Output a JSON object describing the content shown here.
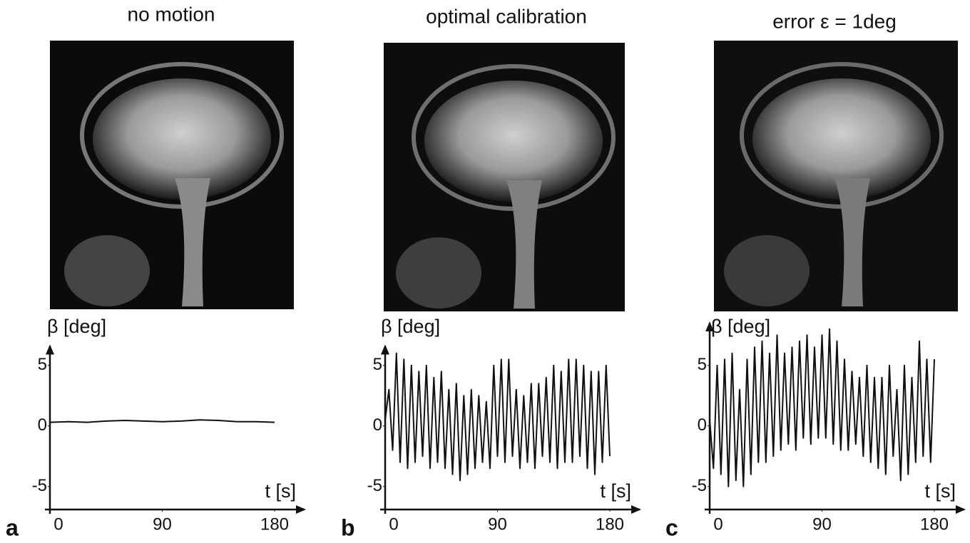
{
  "chart_data": [
    {
      "type": "line",
      "title": "no motion",
      "panel_label": "a",
      "xlabel": "t [s]",
      "ylabel": "β [deg]",
      "x": [
        0,
        15,
        30,
        45,
        60,
        75,
        90,
        105,
        120,
        135,
        150,
        165,
        180
      ],
      "series": [
        {
          "color": "#111111",
          "values": [
            0.3,
            0.35,
            0.3,
            0.4,
            0.45,
            0.4,
            0.35,
            0.4,
            0.5,
            0.45,
            0.35,
            0.35,
            0.3
          ]
        }
      ],
      "xlim": [
        -4,
        204
      ],
      "ylim": [
        -6.9,
        6.6
      ],
      "xticks": [
        0,
        90,
        180
      ],
      "yticks": [
        -5,
        0,
        5
      ]
    },
    {
      "type": "line",
      "title": "optimal calibration",
      "panel_label": "b",
      "xlabel": "t [s]",
      "ylabel": "β [deg]",
      "x": [
        0,
        3,
        6,
        9,
        12,
        15,
        18,
        21,
        24,
        27,
        30,
        33,
        36,
        39,
        42,
        45,
        48,
        51,
        54,
        57,
        60,
        63,
        66,
        69,
        72,
        75,
        78,
        81,
        84,
        87,
        90,
        93,
        96,
        99,
        102,
        105,
        108,
        111,
        114,
        117,
        120,
        123,
        126,
        129,
        132,
        135,
        138,
        141,
        144,
        147,
        150,
        153,
        156,
        159,
        162,
        165,
        168,
        171,
        174,
        177,
        180
      ],
      "series": [
        {
          "color": "#111111",
          "values": [
            0.5,
            3,
            -2,
            6,
            -3,
            5.5,
            -3.5,
            5,
            -3,
            4.5,
            -2.5,
            5,
            -3.5,
            4,
            -3,
            4.5,
            -3.5,
            3,
            -4,
            3.5,
            -4.5,
            2.5,
            -4,
            3,
            -3.5,
            2.5,
            -3,
            2,
            -3.5,
            5,
            -2.5,
            5.5,
            -3,
            5.5,
            -2.5,
            3,
            -3.5,
            2.5,
            -3,
            3.5,
            -3.5,
            3.5,
            -2.5,
            4,
            -3,
            5,
            -3.5,
            4.5,
            -3,
            5.5,
            -3,
            5.5,
            -2.5,
            5,
            -3.5,
            4.5,
            -4,
            4.5,
            -3,
            5,
            -2.5
          ]
        }
      ],
      "xlim": [
        -4,
        204
      ],
      "ylim": [
        -6.9,
        6.6
      ],
      "xticks": [
        0,
        90,
        180
      ],
      "yticks": [
        -5,
        0,
        5
      ]
    },
    {
      "type": "line",
      "title": "error ε = 1deg",
      "panel_label": "c",
      "xlabel": "t [s]",
      "ylabel": "β [deg]",
      "x": [
        0,
        3,
        6,
        9,
        12,
        15,
        18,
        21,
        24,
        27,
        30,
        33,
        36,
        39,
        42,
        45,
        48,
        51,
        54,
        57,
        60,
        63,
        66,
        69,
        72,
        75,
        78,
        81,
        84,
        87,
        90,
        93,
        96,
        99,
        102,
        105,
        108,
        111,
        114,
        117,
        120,
        123,
        126,
        129,
        132,
        135,
        138,
        141,
        144,
        147,
        150,
        153,
        156,
        159,
        162,
        165,
        168,
        171,
        174,
        177,
        180
      ],
      "series": [
        {
          "color": "#111111",
          "values": [
            0.5,
            -3.5,
            5,
            -4,
            5.5,
            -5,
            6,
            -4.5,
            3,
            -5,
            5.5,
            -4,
            6.5,
            -3,
            7,
            -3,
            6,
            -2.5,
            7.5,
            -2,
            6,
            -1.5,
            6.5,
            -2,
            7,
            -1,
            7.5,
            -1.5,
            6.5,
            -1,
            7.5,
            -1,
            8,
            -1.5,
            7,
            -2,
            5.5,
            -2,
            4.5,
            -1.5,
            4,
            -2.5,
            5,
            -3,
            4,
            -3.5,
            4,
            -4,
            5,
            -2.5,
            3,
            -4.5,
            5,
            -4,
            4,
            -3,
            7,
            -2.5,
            5.5,
            -3,
            5.5
          ]
        }
      ],
      "xlim": [
        -4,
        204
      ],
      "ylim": [
        -6.9,
        8.5
      ],
      "xticks": [
        0,
        90,
        180
      ],
      "yticks": [
        -5,
        0,
        5
      ]
    }
  ]
}
